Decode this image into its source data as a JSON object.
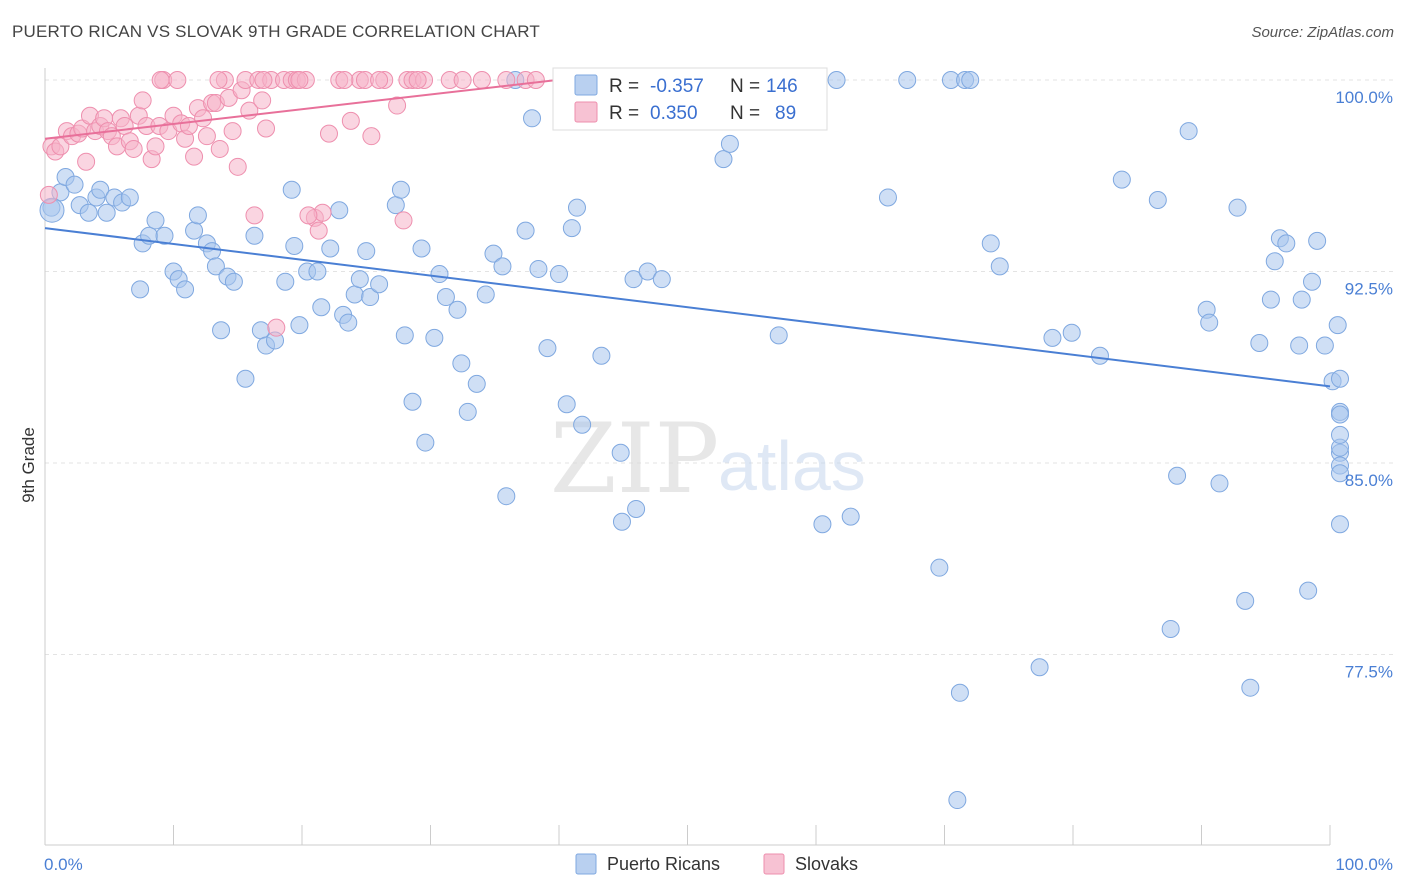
{
  "header": {
    "title": "PUERTO RICAN VS SLOVAK 9TH GRADE CORRELATION CHART",
    "source": "Source: ZipAtlas.com"
  },
  "watermark": {
    "zip": "ZIP",
    "atlas": "atlas"
  },
  "legend": {
    "rows": [
      {
        "r_label": "R =",
        "r_value": "-0.357",
        "n_label": "N =",
        "n_value": "146",
        "color": "#a8c4ec"
      },
      {
        "r_label": "R =",
        "r_value": "0.350",
        "n_label": "N =",
        "n_value": "89",
        "color": "#f5b3c8"
      }
    ]
  },
  "bottom_legend": [
    {
      "label": "Puerto Ricans",
      "color": "#a8c4ec"
    },
    {
      "label": "Slovaks",
      "color": "#f5b3c8"
    }
  ],
  "chart_data": {
    "type": "scatter",
    "title": "PUERTO RICAN VS SLOVAK 9TH GRADE CORRELATION CHART",
    "ylabel": "9th Grade",
    "xlabel": "",
    "xlim": [
      0,
      100
    ],
    "ylim": [
      71.5,
      101
    ],
    "x_tick_labels": [
      "0.0%",
      "100.0%"
    ],
    "y_ticks": [
      77.5,
      85.0,
      92.5,
      100.0
    ],
    "y_tick_labels": [
      "77.5%",
      "85.0%",
      "92.5%",
      "100.0%"
    ],
    "grid": true,
    "colors": {
      "puerto_ricans": "#4a7fd4",
      "slovaks": "#e8709a"
    },
    "series": [
      {
        "name": "Puerto Ricans",
        "color": "#a8c4ec",
        "stroke": "#7fa8e0",
        "trend": {
          "x": [
            0,
            100
          ],
          "y": [
            94.2,
            88.0
          ]
        },
        "points": [
          [
            0.5,
            95.0
          ],
          [
            1.2,
            95.6
          ],
          [
            1.6,
            96.2
          ],
          [
            2.3,
            95.9
          ],
          [
            2.7,
            95.1
          ],
          [
            3.4,
            94.8
          ],
          [
            4.0,
            95.4
          ],
          [
            4.3,
            95.7
          ],
          [
            4.8,
            94.8
          ],
          [
            5.4,
            95.4
          ],
          [
            6.0,
            95.2
          ],
          [
            6.6,
            95.4
          ],
          [
            7.6,
            93.6
          ],
          [
            8.1,
            93.9
          ],
          [
            8.6,
            94.5
          ],
          [
            9.3,
            93.9
          ],
          [
            10.0,
            92.5
          ],
          [
            10.4,
            92.2
          ],
          [
            10.9,
            91.8
          ],
          [
            11.6,
            94.1
          ],
          [
            11.9,
            94.7
          ],
          [
            12.6,
            93.6
          ],
          [
            13.0,
            93.3
          ],
          [
            13.3,
            92.7
          ],
          [
            14.2,
            92.3
          ],
          [
            14.7,
            92.1
          ],
          [
            7.4,
            91.8
          ],
          [
            13.7,
            90.2
          ],
          [
            15.6,
            88.3
          ],
          [
            16.3,
            93.9
          ],
          [
            16.8,
            90.2
          ],
          [
            17.2,
            89.6
          ],
          [
            17.9,
            89.8
          ],
          [
            18.7,
            92.1
          ],
          [
            19.2,
            95.7
          ],
          [
            19.4,
            93.5
          ],
          [
            19.8,
            90.4
          ],
          [
            20.4,
            92.5
          ],
          [
            21.2,
            92.5
          ],
          [
            21.5,
            91.1
          ],
          [
            22.2,
            93.4
          ],
          [
            22.9,
            94.9
          ],
          [
            23.2,
            90.8
          ],
          [
            23.6,
            90.5
          ],
          [
            24.1,
            91.6
          ],
          [
            24.5,
            92.2
          ],
          [
            25.0,
            93.3
          ],
          [
            25.3,
            91.5
          ],
          [
            26.0,
            92.0
          ],
          [
            27.3,
            95.1
          ],
          [
            27.7,
            95.7
          ],
          [
            28.0,
            90.0
          ],
          [
            28.6,
            87.4
          ],
          [
            29.3,
            93.4
          ],
          [
            29.6,
            85.8
          ],
          [
            30.3,
            89.9
          ],
          [
            30.7,
            92.4
          ],
          [
            31.2,
            91.5
          ],
          [
            32.1,
            91.0
          ],
          [
            32.4,
            88.9
          ],
          [
            32.9,
            87.0
          ],
          [
            33.6,
            88.1
          ],
          [
            34.3,
            91.6
          ],
          [
            34.9,
            93.2
          ],
          [
            35.6,
            92.7
          ],
          [
            35.9,
            83.7
          ],
          [
            36.6,
            100.0
          ],
          [
            37.4,
            94.1
          ],
          [
            37.9,
            98.5
          ],
          [
            38.4,
            92.6
          ],
          [
            39.1,
            89.5
          ],
          [
            40.0,
            92.4
          ],
          [
            40.6,
            87.3
          ],
          [
            41.0,
            94.2
          ],
          [
            41.4,
            95.0
          ],
          [
            41.8,
            86.5
          ],
          [
            42.8,
            100.0
          ],
          [
            43.3,
            89.2
          ],
          [
            44.8,
            85.4
          ],
          [
            44.9,
            82.7
          ],
          [
            45.8,
            92.2
          ],
          [
            46.0,
            83.2
          ],
          [
            46.3,
            100.0
          ],
          [
            46.9,
            92.5
          ],
          [
            47.3,
            100.0
          ],
          [
            47.6,
            100.0
          ],
          [
            48.0,
            92.2
          ],
          [
            48.5,
            100.0
          ],
          [
            49.8,
            100.0
          ],
          [
            52.8,
            96.9
          ],
          [
            53.3,
            97.5
          ],
          [
            55.0,
            100.0
          ],
          [
            57.1,
            90.0
          ],
          [
            58.0,
            100.0
          ],
          [
            60.5,
            82.6
          ],
          [
            61.6,
            100.0
          ],
          [
            62.7,
            82.9
          ],
          [
            65.6,
            95.4
          ],
          [
            67.1,
            100.0
          ],
          [
            69.6,
            80.9
          ],
          [
            70.5,
            100.0
          ],
          [
            71.2,
            76.0
          ],
          [
            71.6,
            100.0
          ],
          [
            71.0,
            71.8
          ],
          [
            72.0,
            100.0
          ],
          [
            73.6,
            93.6
          ],
          [
            74.3,
            92.7
          ],
          [
            77.4,
            77.0
          ],
          [
            78.4,
            89.9
          ],
          [
            79.9,
            90.1
          ],
          [
            82.1,
            89.2
          ],
          [
            83.8,
            96.1
          ],
          [
            86.6,
            95.3
          ],
          [
            87.6,
            78.5
          ],
          [
            88.1,
            84.5
          ],
          [
            89.0,
            98.0
          ],
          [
            90.4,
            91.0
          ],
          [
            90.6,
            90.5
          ],
          [
            91.4,
            84.2
          ],
          [
            92.8,
            95.0
          ],
          [
            93.4,
            79.6
          ],
          [
            93.8,
            76.2
          ],
          [
            94.5,
            89.7
          ],
          [
            95.4,
            91.4
          ],
          [
            95.7,
            92.9
          ],
          [
            96.1,
            93.8
          ],
          [
            96.6,
            93.6
          ],
          [
            97.6,
            89.6
          ],
          [
            97.8,
            91.4
          ],
          [
            98.3,
            80.0
          ],
          [
            98.6,
            92.1
          ],
          [
            99.0,
            93.7
          ],
          [
            99.6,
            89.6
          ],
          [
            100.2,
            88.2
          ],
          [
            100.6,
            90.4
          ],
          [
            100.9,
            88.3
          ],
          [
            101.4,
            87.0
          ],
          [
            101.9,
            86.9
          ],
          [
            102.3,
            85.4
          ],
          [
            102.7,
            85.6
          ],
          [
            103.2,
            86.1
          ],
          [
            103.9,
            84.9
          ],
          [
            104.2,
            84.6
          ],
          [
            104.6,
            82.6
          ]
        ]
      },
      {
        "name": "Slovaks",
        "color": "#f5b3c8",
        "stroke": "#ee8fae",
        "trend": {
          "x": [
            0,
            45
          ],
          "y": [
            97.7,
            100.3
          ]
        },
        "points": [
          [
            0.3,
            95.5
          ],
          [
            0.5,
            97.4
          ],
          [
            0.8,
            97.2
          ],
          [
            1.2,
            97.4
          ],
          [
            1.7,
            98.0
          ],
          [
            2.1,
            97.8
          ],
          [
            2.6,
            97.9
          ],
          [
            2.9,
            98.1
          ],
          [
            3.2,
            96.8
          ],
          [
            3.5,
            98.6
          ],
          [
            3.9,
            98.0
          ],
          [
            4.3,
            98.2
          ],
          [
            4.6,
            98.5
          ],
          [
            4.9,
            98.0
          ],
          [
            5.2,
            97.8
          ],
          [
            5.6,
            97.4
          ],
          [
            5.9,
            98.5
          ],
          [
            6.2,
            98.2
          ],
          [
            6.6,
            97.6
          ],
          [
            6.9,
            97.3
          ],
          [
            7.3,
            98.6
          ],
          [
            7.6,
            99.2
          ],
          [
            7.9,
            98.2
          ],
          [
            8.3,
            96.9
          ],
          [
            8.6,
            97.4
          ],
          [
            8.9,
            98.2
          ],
          [
            9.2,
            100.0
          ],
          [
            9.6,
            98.0
          ],
          [
            10.0,
            98.6
          ],
          [
            10.3,
            100.0
          ],
          [
            10.6,
            98.3
          ],
          [
            10.9,
            97.7
          ],
          [
            11.2,
            98.2
          ],
          [
            11.6,
            97.0
          ],
          [
            11.9,
            98.9
          ],
          [
            12.3,
            98.5
          ],
          [
            12.6,
            97.8
          ],
          [
            13.0,
            99.1
          ],
          [
            13.3,
            99.1
          ],
          [
            13.6,
            97.3
          ],
          [
            14.0,
            100.0
          ],
          [
            14.3,
            99.3
          ],
          [
            14.6,
            98.0
          ],
          [
            15.0,
            96.6
          ],
          [
            15.3,
            99.6
          ],
          [
            15.6,
            100.0
          ],
          [
            15.9,
            98.8
          ],
          [
            16.3,
            94.7
          ],
          [
            16.6,
            100.0
          ],
          [
            16.9,
            99.2
          ],
          [
            17.2,
            98.1
          ],
          [
            17.6,
            100.0
          ],
          [
            18.0,
            90.3
          ],
          [
            18.6,
            100.0
          ],
          [
            19.2,
            100.0
          ],
          [
            19.6,
            100.0
          ],
          [
            20.3,
            100.0
          ],
          [
            21.0,
            94.6
          ],
          [
            21.6,
            94.8
          ],
          [
            22.1,
            97.9
          ],
          [
            22.9,
            100.0
          ],
          [
            23.8,
            98.4
          ],
          [
            24.5,
            100.0
          ],
          [
            25.4,
            97.8
          ],
          [
            26.4,
            100.0
          ],
          [
            27.4,
            99.0
          ],
          [
            28.2,
            100.0
          ],
          [
            28.6,
            100.0
          ],
          [
            29.5,
            100.0
          ],
          [
            31.5,
            100.0
          ],
          [
            35.9,
            100.0
          ],
          [
            37.4,
            100.0
          ],
          [
            38.2,
            100.0
          ],
          [
            40.2,
            100.0
          ],
          [
            41.6,
            100.0
          ],
          [
            43.0,
            100.0
          ],
          [
            45.3,
            100.0
          ],
          [
            46.7,
            100.0
          ],
          [
            20.5,
            94.7
          ],
          [
            21.3,
            94.1
          ],
          [
            24.9,
            100.0
          ],
          [
            27.9,
            94.5
          ],
          [
            9.0,
            100.0
          ],
          [
            13.5,
            100.0
          ],
          [
            17.0,
            100.0
          ],
          [
            19.8,
            100.0
          ],
          [
            23.3,
            100.0
          ],
          [
            26.0,
            100.0
          ],
          [
            29.0,
            100.0
          ],
          [
            32.5,
            100.0
          ],
          [
            34.0,
            100.0
          ]
        ]
      }
    ]
  }
}
